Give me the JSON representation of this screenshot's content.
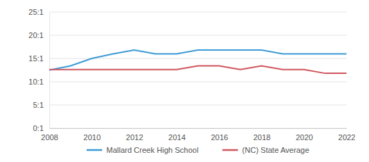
{
  "chart_data": {
    "type": "line",
    "x": [
      2008,
      2009,
      2010,
      2011,
      2012,
      2013,
      2014,
      2015,
      2016,
      2017,
      2018,
      2019,
      2020,
      2021,
      2022
    ],
    "series": [
      {
        "name": "Mallard Creek High School",
        "color": "#3d9bd6",
        "values": [
          12.5,
          13.4,
          15,
          16,
          16.8,
          16,
          16,
          16.8,
          16.8,
          16.8,
          16.8,
          16,
          16,
          16,
          16
        ]
      },
      {
        "name": "(NC) State Average",
        "color": "#d0565f",
        "values": [
          12.6,
          12.6,
          12.6,
          12.6,
          12.6,
          12.6,
          12.6,
          13.4,
          13.4,
          12.6,
          13.4,
          12.6,
          12.6,
          11.8,
          11.8
        ]
      }
    ],
    "xlim": [
      2008,
      2022
    ],
    "xticks": [
      2008,
      2010,
      2012,
      2014,
      2016,
      2018,
      2020,
      2022
    ],
    "ylim": [
      0,
      25
    ],
    "yticks": [
      {
        "value": 0,
        "label": "0:1"
      },
      {
        "value": 5,
        "label": "5:1"
      },
      {
        "value": 10,
        "label": "10:1"
      },
      {
        "value": 15,
        "label": "15:1"
      },
      {
        "value": 20,
        "label": "20:1"
      },
      {
        "value": 25,
        "label": "25:1"
      }
    ],
    "grid": true,
    "legend": "bottom"
  }
}
